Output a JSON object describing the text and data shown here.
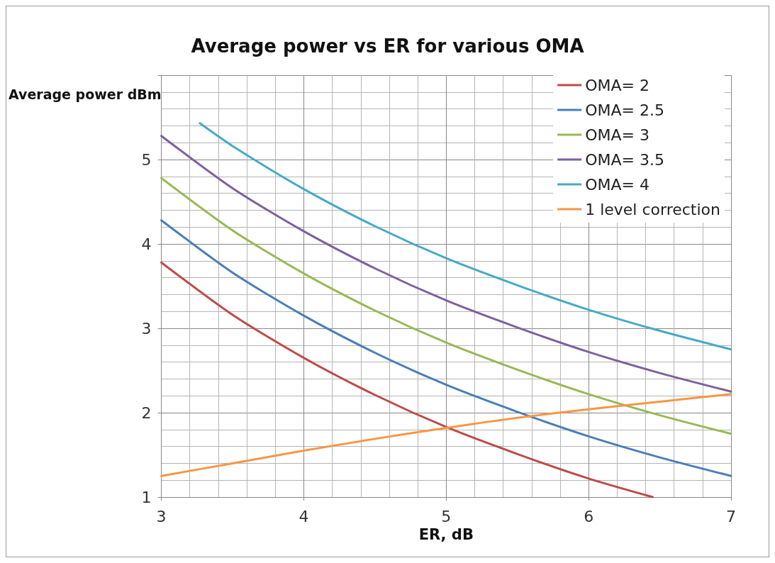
{
  "chart_data": {
    "type": "line",
    "title": "Average power vs ER for various OMA",
    "xlabel": "ER, dB",
    "ylabel": "Average power dBm",
    "x": [
      3,
      3.5,
      4,
      4.5,
      5,
      5.5,
      6,
      6.5,
      7
    ],
    "series": [
      {
        "name": "OMA= 2",
        "color": "#be4b48",
        "x": [
          3,
          3.5,
          4,
          4.5,
          5,
          5.5,
          6,
          6.45
        ],
        "values": [
          3.78,
          3.16,
          2.65,
          2.21,
          1.83,
          1.51,
          1.22,
          1.0
        ]
      },
      {
        "name": "OMA= 2.5",
        "color": "#4a7ebb",
        "values": [
          4.28,
          3.66,
          3.15,
          2.71,
          2.33,
          2.01,
          1.72,
          1.47,
          1.25
        ]
      },
      {
        "name": "OMA= 3",
        "color": "#98b954",
        "values": [
          4.78,
          4.16,
          3.65,
          3.21,
          2.83,
          2.51,
          2.22,
          1.97,
          1.75
        ]
      },
      {
        "name": "OMA= 3.5",
        "color": "#7d60a0",
        "values": [
          5.28,
          4.66,
          4.15,
          3.71,
          3.33,
          3.01,
          2.72,
          2.47,
          2.25
        ]
      },
      {
        "name": "OMA= 4",
        "color": "#46aac5",
        "x": [
          3.27,
          3.5,
          4,
          4.5,
          5,
          5.5,
          6,
          6.5,
          7
        ],
        "values": [
          5.43,
          5.16,
          4.65,
          4.21,
          3.83,
          3.51,
          3.22,
          2.97,
          2.75
        ]
      },
      {
        "name": "1 level correction",
        "color": "#f79646",
        "values": [
          1.25,
          1.4,
          1.55,
          1.69,
          1.82,
          1.94,
          2.04,
          2.13,
          2.22
        ]
      }
    ],
    "xlim": [
      3,
      7
    ],
    "xticks": [
      3,
      4,
      5,
      6,
      7
    ],
    "ylim": [
      1,
      6
    ],
    "yticks": [
      1,
      2,
      3,
      4,
      5
    ],
    "grid": true,
    "legend": "top right",
    "marker": "none",
    "line_style": "solid"
  }
}
